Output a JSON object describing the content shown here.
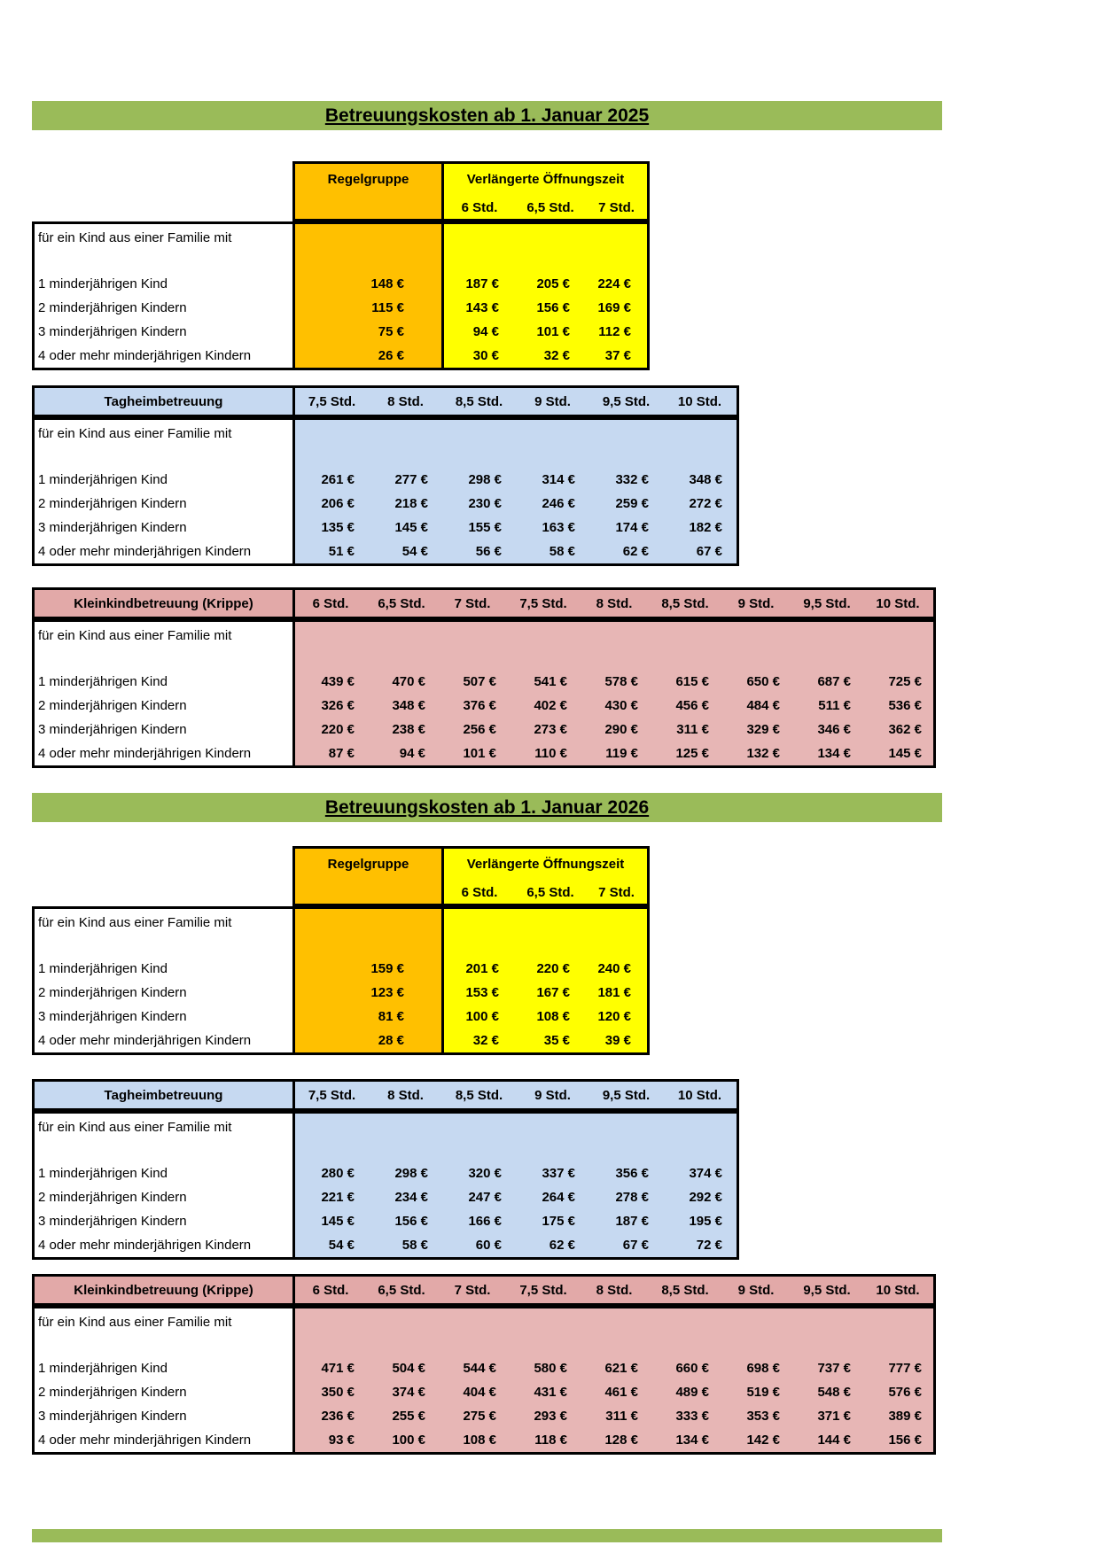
{
  "colors": {
    "title_bar_green": "#9ABB59",
    "regelgruppe_orange": "#FFC000",
    "verlaengerte_yellow": "#FFFF00",
    "tagheim_blue": "#C6D9F1",
    "krippe_pink": "#E7B6B5"
  },
  "sections": [
    {
      "title": "Betreuungskosten ab 1. Januar 2025",
      "regel_table": {
        "regel_label": "Regelgruppe",
        "verl_label": "Verlängerte Öffnungszeit",
        "sub_columns": [
          "6 Std.",
          "6,5 Std.",
          "7 Std."
        ],
        "intro": "für ein Kind aus einer Familie mit",
        "rows": [
          {
            "label": "1 minderjährigen Kind",
            "regel": "148 €",
            "values": [
              "187 €",
              "205 €",
              "224 €"
            ]
          },
          {
            "label": "2 minderjährigen Kindern",
            "regel": "115 €",
            "values": [
              "143 €",
              "156 €",
              "169 €"
            ]
          },
          {
            "label": "3 minderjährigen Kindern",
            "regel": "75 €",
            "values": [
              "94 €",
              "101 €",
              "112 €"
            ]
          },
          {
            "label": "4 oder mehr minderjährigen Kindern",
            "regel": "26 €",
            "values": [
              "30 €",
              "32 €",
              "37 €"
            ]
          }
        ]
      },
      "tagheim_table": {
        "title": "Tagheimbetreuung",
        "columns": [
          "7,5 Std.",
          "8 Std.",
          "8,5 Std.",
          "9 Std.",
          "9,5 Std.",
          "10 Std."
        ],
        "intro": "für ein Kind aus einer Familie mit",
        "rows": [
          {
            "label": "1 minderjährigen Kind",
            "values": [
              "261 €",
              "277 €",
              "298 €",
              "314 €",
              "332 €",
              "348 €"
            ]
          },
          {
            "label": "2 minderjährigen Kindern",
            "values": [
              "206 €",
              "218 €",
              "230 €",
              "246 €",
              "259 €",
              "272 €"
            ]
          },
          {
            "label": "3 minderjährigen Kindern",
            "values": [
              "135 €",
              "145 €",
              "155 €",
              "163 €",
              "174 €",
              "182 €"
            ]
          },
          {
            "label": "4 oder mehr minderjährigen Kindern",
            "values": [
              "51 €",
              "54 €",
              "56 €",
              "58 €",
              "62 €",
              "67 €"
            ]
          }
        ]
      },
      "krippe_table": {
        "title": "Kleinkindbetreuung (Krippe)",
        "columns": [
          "6 Std.",
          "6,5 Std.",
          "7 Std.",
          "7,5 Std.",
          "8 Std.",
          "8,5 Std.",
          "9 Std.",
          "9,5 Std.",
          "10 Std."
        ],
        "intro": "für ein Kind aus einer Familie mit",
        "rows": [
          {
            "label": "1 minderjährigen Kind",
            "values": [
              "439 €",
              "470 €",
              "507 €",
              "541 €",
              "578 €",
              "615 €",
              "650 €",
              "687 €",
              "725 €"
            ]
          },
          {
            "label": "2 minderjährigen Kindern",
            "values": [
              "326 €",
              "348 €",
              "376 €",
              "402 €",
              "430 €",
              "456 €",
              "484 €",
              "511 €",
              "536 €"
            ]
          },
          {
            "label": "3 minderjährigen Kindern",
            "values": [
              "220 €",
              "238 €",
              "256 €",
              "273 €",
              "290 €",
              "311 €",
              "329 €",
              "346 €",
              "362 €"
            ]
          },
          {
            "label": "4 oder mehr minderjährigen Kindern",
            "values": [
              "87 €",
              "94 €",
              "101 €",
              "110 €",
              "119 €",
              "125 €",
              "132 €",
              "134 €",
              "145 €"
            ]
          }
        ]
      }
    },
    {
      "title": "Betreuungskosten ab 1. Januar 2026",
      "regel_table": {
        "regel_label": "Regelgruppe",
        "verl_label": "Verlängerte Öffnungszeit",
        "sub_columns": [
          "6 Std.",
          "6,5 Std.",
          "7 Std."
        ],
        "intro": "für ein Kind aus einer Familie mit",
        "rows": [
          {
            "label": "1 minderjährigen Kind",
            "regel": "159 €",
            "values": [
              "201 €",
              "220 €",
              "240 €"
            ]
          },
          {
            "label": "2 minderjährigen Kindern",
            "regel": "123 €",
            "values": [
              "153 €",
              "167 €",
              "181 €"
            ]
          },
          {
            "label": "3 minderjährigen Kindern",
            "regel": "81 €",
            "values": [
              "100 €",
              "108 €",
              "120 €"
            ]
          },
          {
            "label": "4 oder mehr minderjährigen Kindern",
            "regel": "28 €",
            "values": [
              "32 €",
              "35 €",
              "39 €"
            ]
          }
        ]
      },
      "tagheim_table": {
        "title": "Tagheimbetreuung",
        "columns": [
          "7,5 Std.",
          "8 Std.",
          "8,5 Std.",
          "9 Std.",
          "9,5 Std.",
          "10 Std."
        ],
        "intro": "für ein Kind aus einer Familie mit",
        "rows": [
          {
            "label": "1 minderjährigen Kind",
            "values": [
              "280 €",
              "298 €",
              "320 €",
              "337 €",
              "356 €",
              "374 €"
            ]
          },
          {
            "label": "2 minderjährigen Kindern",
            "values": [
              "221 €",
              "234 €",
              "247 €",
              "264 €",
              "278 €",
              "292 €"
            ]
          },
          {
            "label": "3 minderjährigen Kindern",
            "values": [
              "145 €",
              "156 €",
              "166 €",
              "175 €",
              "187 €",
              "195 €"
            ]
          },
          {
            "label": "4 oder mehr minderjährigen Kindern",
            "values": [
              "54 €",
              "58 €",
              "60 €",
              "62 €",
              "67 €",
              "72 €"
            ]
          }
        ]
      },
      "krippe_table": {
        "title": "Kleinkindbetreuung (Krippe)",
        "columns": [
          "6 Std.",
          "6,5 Std.",
          "7 Std.",
          "7,5 Std.",
          "8 Std.",
          "8,5 Std.",
          "9 Std.",
          "9,5 Std.",
          "10 Std."
        ],
        "intro": "für ein Kind aus einer Familie mit",
        "rows": [
          {
            "label": "1 minderjährigen Kind",
            "values": [
              "471 €",
              "504 €",
              "544 €",
              "580 €",
              "621 €",
              "660 €",
              "698 €",
              "737 €",
              "777 €"
            ]
          },
          {
            "label": "2 minderjährigen Kindern",
            "values": [
              "350 €",
              "374 €",
              "404 €",
              "431 €",
              "461 €",
              "489 €",
              "519 €",
              "548 €",
              "576 €"
            ]
          },
          {
            "label": "3 minderjährigen Kindern",
            "values": [
              "236 €",
              "255 €",
              "275 €",
              "293 €",
              "311 €",
              "333 €",
              "353 €",
              "371 €",
              "389 €"
            ]
          },
          {
            "label": "4 oder mehr minderjährigen Kindern",
            "values": [
              "93 €",
              "100 €",
              "108 €",
              "118 €",
              "128 €",
              "134 €",
              "142 €",
              "144 €",
              "156 €"
            ]
          }
        ]
      }
    }
  ]
}
